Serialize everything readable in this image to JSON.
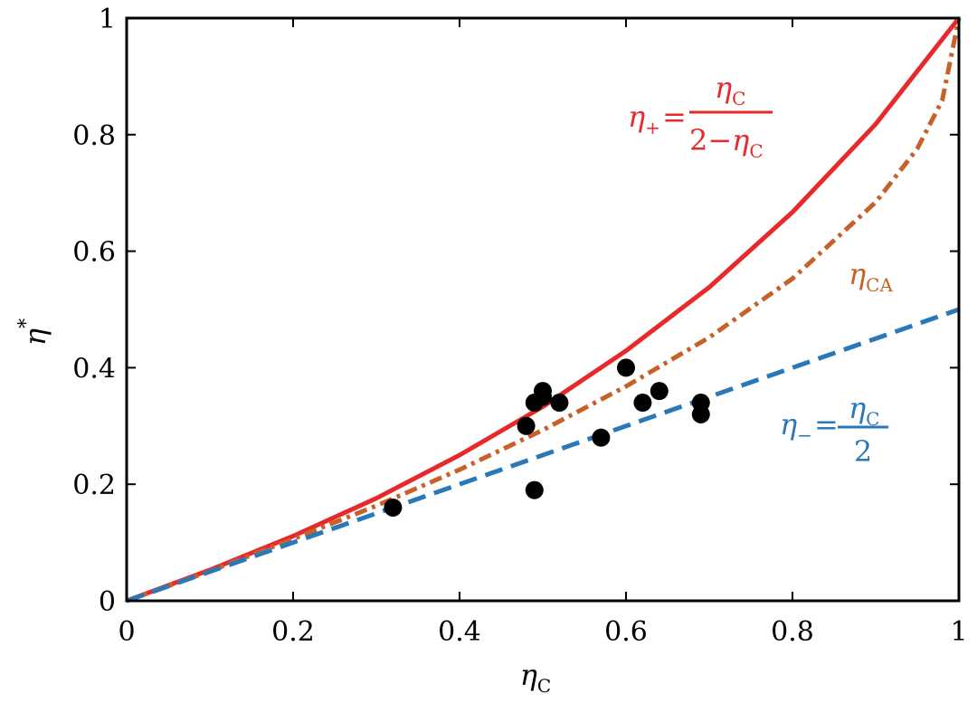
{
  "chart_data": {
    "type": "line",
    "xlabel": {
      "symbol": "η",
      "subscript": "C"
    },
    "ylabel": {
      "symbol": "η",
      "superscript": "*"
    },
    "xlim": [
      0,
      1
    ],
    "ylim": [
      0,
      1
    ],
    "xticks": [
      0,
      0.2,
      0.4,
      0.6,
      0.8,
      1
    ],
    "xtick_labels": [
      "0",
      "0.2",
      "0.4",
      "0.6",
      "0.8",
      "1"
    ],
    "yticks": [
      0,
      0.2,
      0.4,
      0.6,
      0.8,
      1
    ],
    "ytick_labels": [
      "0",
      "0.2",
      "0.4",
      "0.6",
      "0.8",
      "1"
    ],
    "grid": false,
    "series": [
      {
        "id": "eta_plus",
        "function": "ηC/(2−ηC)",
        "style": "solid",
        "color": "#e8292b",
        "x": [
          0,
          0.1,
          0.2,
          0.3,
          0.4,
          0.5,
          0.6,
          0.7,
          0.8,
          0.9,
          1.0
        ],
        "values": [
          0,
          0.053,
          0.111,
          0.176,
          0.25,
          0.333,
          0.429,
          0.538,
          0.667,
          0.818,
          1.0
        ]
      },
      {
        "id": "eta_CA",
        "function": "1−√(1−ηC)",
        "style": "dash-dot",
        "color": "#c8602a",
        "x": [
          0,
          0.1,
          0.2,
          0.3,
          0.4,
          0.5,
          0.6,
          0.7,
          0.8,
          0.9,
          0.95,
          0.98,
          1.0
        ],
        "values": [
          0,
          0.051,
          0.106,
          0.163,
          0.225,
          0.293,
          0.368,
          0.452,
          0.553,
          0.684,
          0.776,
          0.859,
          1.0
        ]
      },
      {
        "id": "eta_minus",
        "function": "ηC/2",
        "style": "dashed",
        "color": "#2a78b8",
        "x": [
          0,
          1
        ],
        "values": [
          0,
          0.5
        ]
      }
    ],
    "points": {
      "color": "#000000",
      "x": [
        0.32,
        0.48,
        0.49,
        0.49,
        0.5,
        0.5,
        0.52,
        0.57,
        0.6,
        0.62,
        0.64,
        0.69,
        0.69
      ],
      "y": [
        0.16,
        0.3,
        0.34,
        0.19,
        0.36,
        0.35,
        0.34,
        0.28,
        0.4,
        0.34,
        0.36,
        0.34,
        0.32
      ]
    },
    "annotations": {
      "eta_plus": {
        "lhs_symbol": "η",
        "lhs_subscript": "+",
        "equals": "=",
        "numerator_symbol": "η",
        "numerator_subscript": "C",
        "denominator_prefix": "2−",
        "denominator_symbol": "η",
        "denominator_subscript": "C",
        "color": "#e8292b"
      },
      "eta_CA": {
        "symbol": "η",
        "subscript": "CA",
        "color": "#c8602a"
      },
      "eta_minus": {
        "lhs_symbol": "η",
        "lhs_subscript": "−",
        "equals": "=",
        "numerator_symbol": "η",
        "numerator_subscript": "C",
        "denominator": "2",
        "color": "#2a78b8"
      }
    }
  }
}
